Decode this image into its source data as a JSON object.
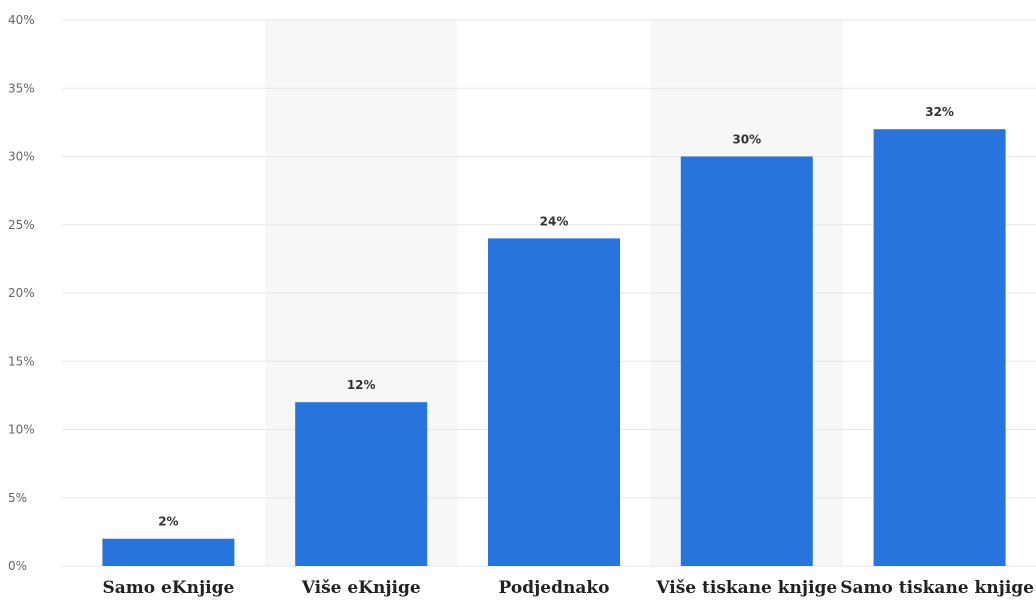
{
  "chart_data": {
    "type": "bar",
    "categories": [
      "Samo eKnjige",
      "Više eKnjige",
      "Podjednako",
      "Više tiskane knjige",
      "Samo tiskane knjige"
    ],
    "values": [
      2,
      12,
      24,
      30,
      32
    ],
    "value_labels": [
      "2%",
      "12%",
      "24%",
      "30%",
      "32%"
    ],
    "y_ticks": [
      "0%",
      "5%",
      "10%",
      "15%",
      "20%",
      "25%",
      "30%",
      "35%",
      "40%"
    ],
    "ylim": [
      0,
      40
    ],
    "y_tick_step": 5,
    "grid": true,
    "legend": "none",
    "title": "",
    "xlabel": "",
    "ylabel": "",
    "colors": {
      "bar": "#2775dc",
      "grid": "#e6e6e6",
      "band": "#f7f7f7"
    }
  }
}
